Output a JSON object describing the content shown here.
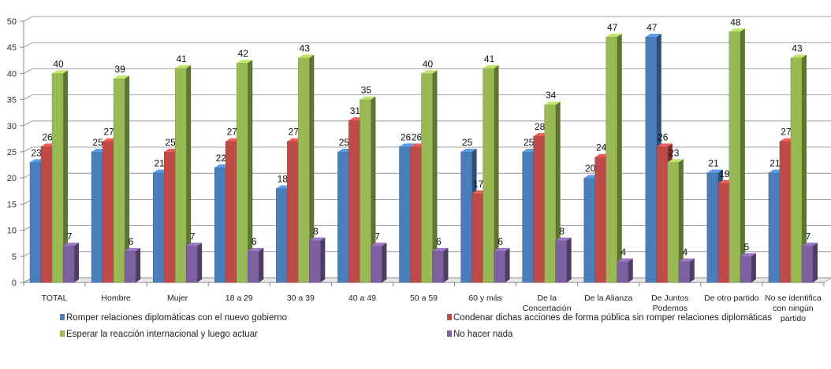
{
  "chart_data": {
    "type": "bar",
    "ylim": [
      0,
      50
    ],
    "yticks": [
      0,
      5,
      10,
      15,
      20,
      25,
      30,
      35,
      40,
      45,
      50
    ],
    "grid": true,
    "legend_position": "bottom",
    "categories": [
      [
        "TOTAL"
      ],
      [
        "Hombre"
      ],
      [
        "Mujer"
      ],
      [
        "18 a  29"
      ],
      [
        "30 a  39"
      ],
      [
        "40 a  49"
      ],
      [
        "50 a  59"
      ],
      [
        "60 y más"
      ],
      [
        "De la",
        "Concertación"
      ],
      [
        "De la Alianza"
      ],
      [
        "De Juntos",
        "Podemos"
      ],
      [
        "De otro partido"
      ],
      [
        "No se identifica",
        "con ningún",
        "partido"
      ]
    ],
    "series": [
      {
        "name": "Romper relaciones diplomáticas  con el nuevo gobierno",
        "color": "#4a7ebb",
        "values": [
          23,
          25,
          21,
          22,
          18,
          25,
          26,
          25,
          25,
          20,
          47,
          21,
          21
        ]
      },
      {
        "name": "Condenar dichas acciones de forma pública sin romper relaciones diplomáticas",
        "color": "#be4b48",
        "values": [
          26,
          27,
          25,
          27,
          27,
          31,
          26,
          17,
          28,
          24,
          26,
          19,
          27
        ]
      },
      {
        "name": "Esperar la reacción internacional y luego actuar",
        "color": "#98b954",
        "values": [
          40,
          39,
          41,
          42,
          43,
          35,
          40,
          41,
          34,
          47,
          23,
          48,
          43
        ]
      },
      {
        "name": "No hacer nada",
        "color": "#7d60a0",
        "values": [
          7,
          6,
          7,
          6,
          8,
          7,
          6,
          6,
          8,
          4,
          4,
          5,
          7
        ]
      }
    ]
  }
}
